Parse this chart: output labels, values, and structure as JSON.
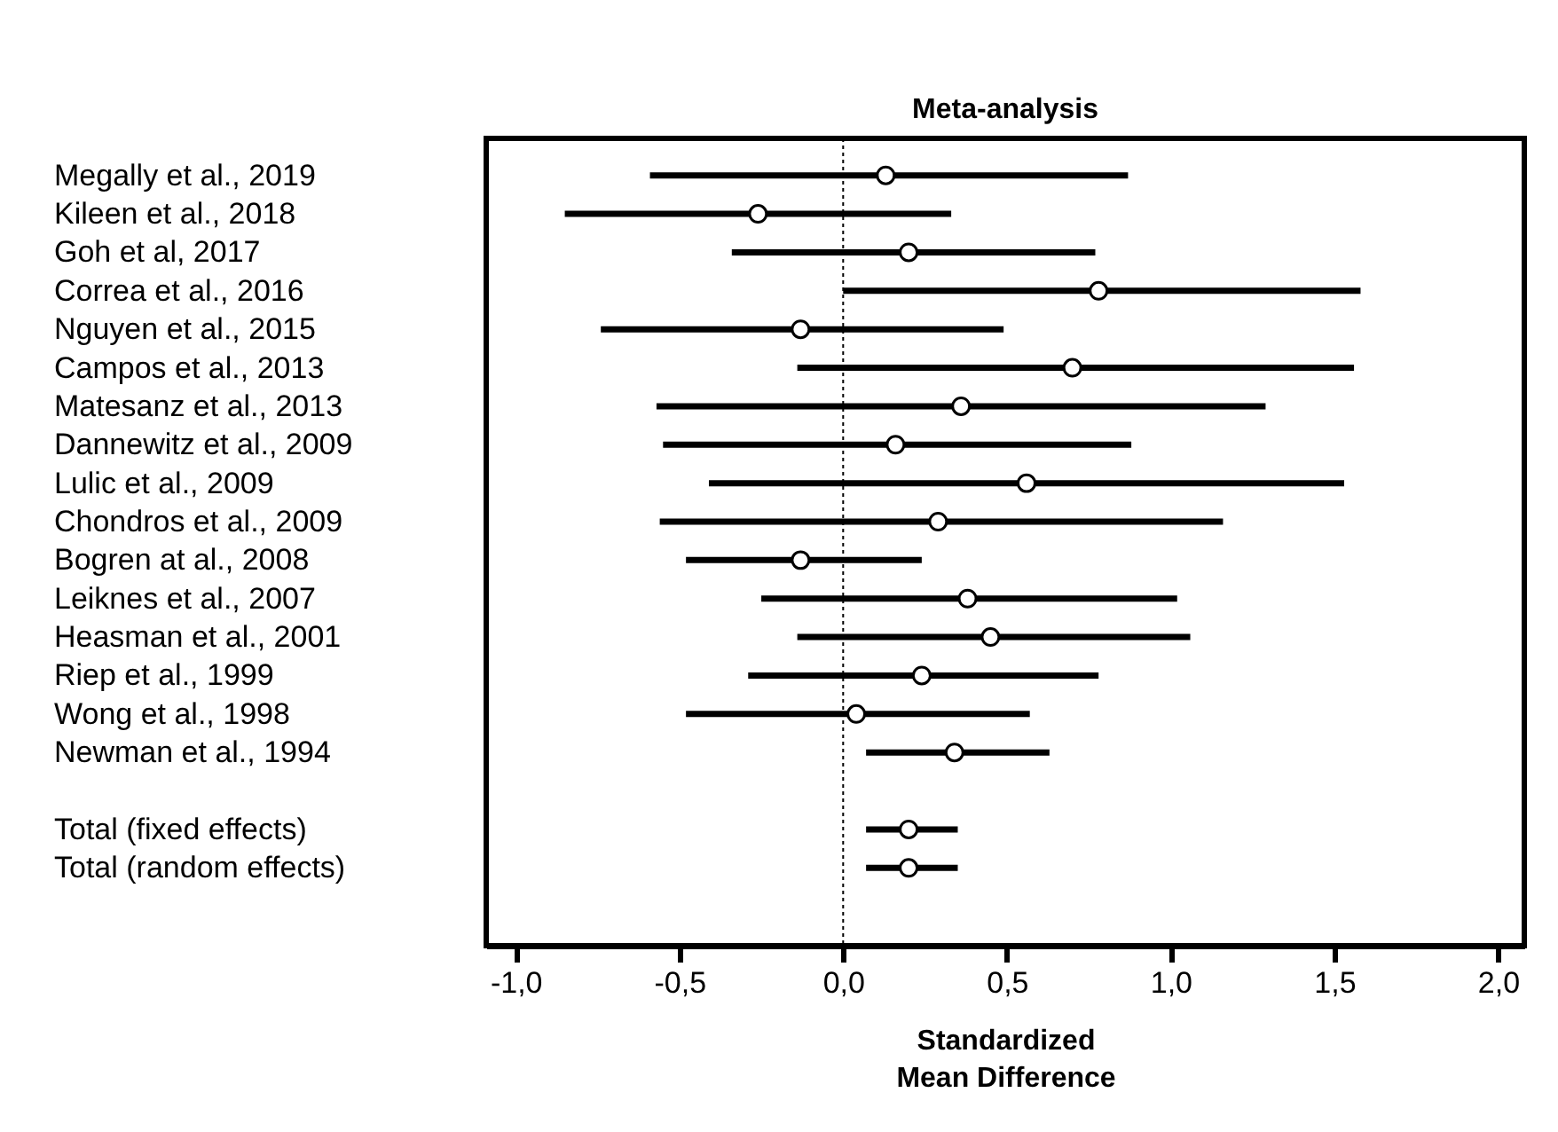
{
  "chart_data": {
    "type": "scatter",
    "orientation": "horizontal",
    "title": "Meta-analysis",
    "xlabel": "Standardized\nMean Difference",
    "categories": [
      "Megally et al., 2019",
      "Kileen et al., 2018",
      "Goh et al, 2017",
      "Correa et al., 2016",
      "Nguyen et al., 2015",
      "Campos et al., 2013",
      "Matesanz et al., 2013",
      "Dannewitz et al., 2009",
      "Lulic et al., 2009",
      "Chondros et al., 2009",
      "Bogren at al., 2008",
      "Leiknes et al., 2007",
      "Heasman et al., 2001",
      "Riep et al., 1999",
      "Wong et al., 1998",
      "Newman et al., 1994",
      null,
      "Total (fixed effects)",
      "Total (random effects)"
    ],
    "values": [
      0.13,
      -0.26,
      0.2,
      0.78,
      -0.13,
      0.7,
      0.36,
      0.16,
      0.56,
      0.29,
      -0.13,
      0.38,
      0.45,
      0.24,
      0.04,
      0.34,
      null,
      0.2,
      0.2
    ],
    "errors": [
      [
        -0.59,
        0.87
      ],
      [
        -0.85,
        0.33
      ],
      [
        -0.34,
        0.77
      ],
      [
        0.0,
        1.58
      ],
      [
        -0.74,
        0.49
      ],
      [
        -0.14,
        1.56
      ],
      [
        -0.57,
        1.29
      ],
      [
        -0.55,
        0.88
      ],
      [
        -0.41,
        1.53
      ],
      [
        -0.56,
        1.16
      ],
      [
        -0.48,
        0.24
      ],
      [
        -0.25,
        1.02
      ],
      [
        -0.14,
        1.06
      ],
      [
        -0.29,
        0.78
      ],
      [
        -0.48,
        0.57
      ],
      [
        0.07,
        0.63
      ],
      null,
      [
        0.07,
        0.35
      ],
      [
        0.07,
        0.35
      ]
    ],
    "color": "#000000",
    "xlim": [
      -1.09,
      2.08
    ],
    "xticks": [
      {
        "value": -1,
        "label": "-1,0"
      },
      {
        "value": -0.5,
        "label": "-0,5"
      },
      {
        "value": 0,
        "label": "0,0"
      },
      {
        "value": 0.5,
        "label": "0,5"
      },
      {
        "value": 1,
        "label": "1,0"
      },
      {
        "value": 1.5,
        "label": "1,5"
      },
      {
        "value": 2,
        "label": "2,0"
      }
    ],
    "ref_lines": [
      {
        "axis": "x",
        "value": 0,
        "line_style": "dotted",
        "color": "#000000"
      }
    ],
    "marker": "circle",
    "grid": false
  }
}
